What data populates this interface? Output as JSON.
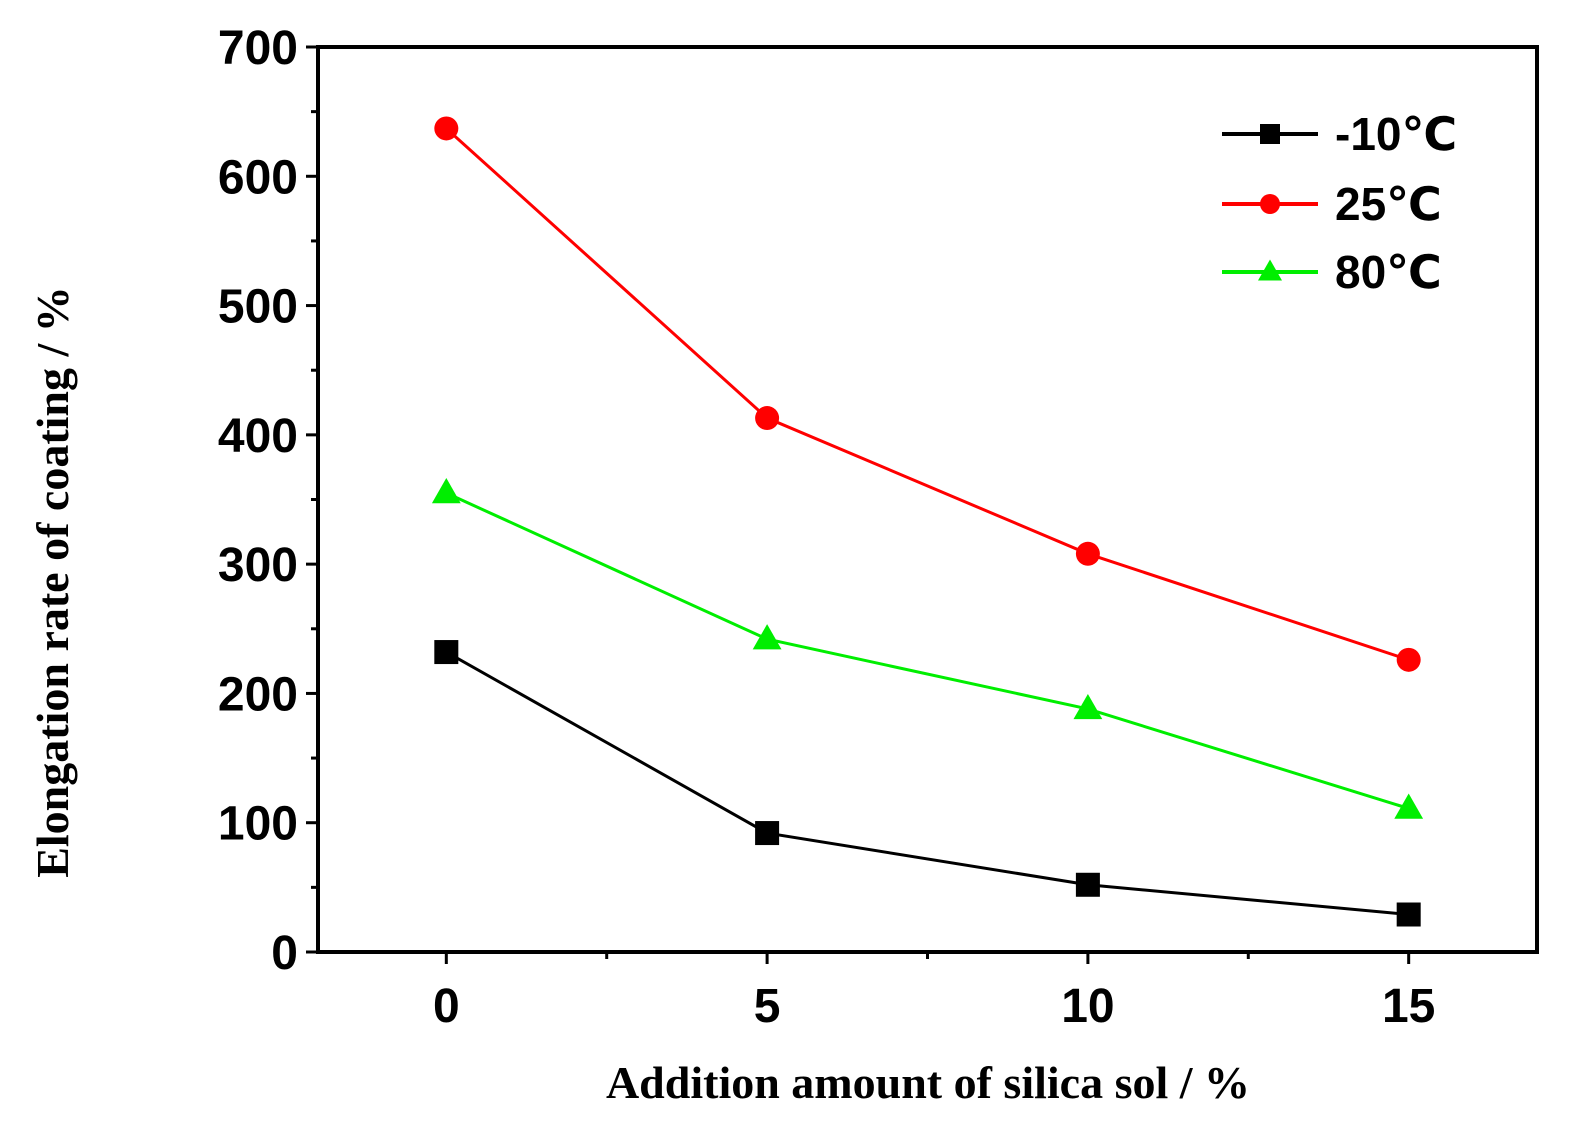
{
  "chart_data": {
    "type": "line",
    "title": "",
    "xlabel": "Addition amount of silica sol / %",
    "ylabel": "Elongation rate of coating / %",
    "x": [
      0,
      5,
      10,
      15
    ],
    "xticks": [
      "0",
      "5",
      "10",
      "15"
    ],
    "yticks": [
      "0",
      "100",
      "200",
      "300",
      "400",
      "500",
      "600",
      "700"
    ],
    "xlim": [
      -2,
      17
    ],
    "ylim": [
      0,
      700
    ],
    "grid": false,
    "legend_position": "top-right",
    "series": [
      {
        "name": "-10℃",
        "color": "#000000",
        "marker": "square",
        "values": [
          232,
          92,
          52,
          29
        ]
      },
      {
        "name": "25℃",
        "color": "#ff0000",
        "marker": "circle",
        "values": [
          637,
          413,
          308,
          226
        ]
      },
      {
        "name": "80℃",
        "color": "#00ee00",
        "marker": "triangle",
        "values": [
          355,
          242,
          188,
          111
        ]
      }
    ]
  }
}
